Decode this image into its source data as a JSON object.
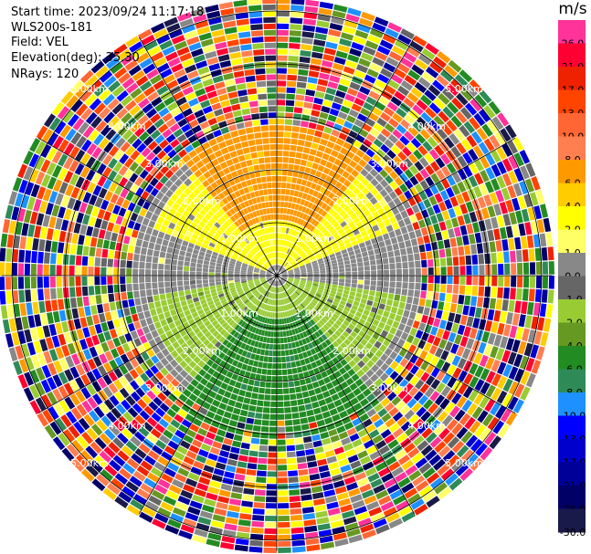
{
  "header": {
    "start_time": "Start time: 2023/09/24 11:17:18",
    "instrument": "WLS200s-181",
    "field": "Field: VEL",
    "elevation": "Elevation(deg): 35.30",
    "nrays": "NRays: 120"
  },
  "colorbar": {
    "unit": "m/s",
    "levels": [
      {
        "label": "26.0",
        "color": "#ff3399"
      },
      {
        "label": "21.0",
        "color": "#ff0033"
      },
      {
        "label": "17.0",
        "color": "#ee2200"
      },
      {
        "label": "13.0",
        "color": "#ff4400"
      },
      {
        "label": "10.0",
        "color": "#ff6633"
      },
      {
        "label": "8.0",
        "color": "#ff7f50"
      },
      {
        "label": "6.0",
        "color": "#ff9900"
      },
      {
        "label": "4.0",
        "color": "#ffcc00"
      },
      {
        "label": "2.0",
        "color": "#ffff00"
      },
      {
        "label": "1.0",
        "color": "#ffff66"
      },
      {
        "label": "0.0",
        "color": "#888888"
      },
      {
        "label": "-1.0",
        "color": "#666666"
      },
      {
        "label": "-2.0",
        "color": "#99cc33"
      },
      {
        "label": "-4.0",
        "color": "#669922"
      },
      {
        "label": "-6.0",
        "color": "#228b22"
      },
      {
        "label": "-8.0",
        "color": "#2e8b57"
      },
      {
        "label": "-10.0",
        "color": "#1e90ff"
      },
      {
        "label": "-13.0",
        "color": "#0000ff"
      },
      {
        "label": "-17.0",
        "color": "#0000cc"
      },
      {
        "label": "-21.0",
        "color": "#000099"
      },
      {
        "label": "-26.0",
        "color": "#000066"
      },
      {
        "label": "-30.0",
        "color": "#1a1a4a"
      }
    ]
  },
  "chart_data": {
    "type": "heatmap",
    "projection": "polar-ppi",
    "field": "VEL",
    "units": "m/s",
    "nrays": 120,
    "azimuth_spokes_deg": [
      0,
      30,
      60,
      90,
      120,
      150,
      180,
      210,
      240,
      270,
      300,
      330
    ],
    "range_rings_km": [
      1.0,
      2.0,
      3.0,
      4.0,
      5.0
    ],
    "ring_label": "{r}km",
    "max_range_km": 5.2,
    "velocity_sectors": [
      {
        "azimuth_range_deg": [
          290,
          70
        ],
        "range_km": [
          0.2,
          2.5
        ],
        "value_ms": 2.0,
        "description": "yellow band north"
      },
      {
        "azimuth_range_deg": [
          320,
          40
        ],
        "range_km": [
          1.0,
          2.8
        ],
        "value_ms": 6.0,
        "description": "orange core north"
      },
      {
        "azimuth_range_deg": [
          80,
          100
        ],
        "range_km": [
          0.3,
          2.2
        ],
        "value_ms": 0.0,
        "description": "grey zero line east"
      },
      {
        "azimuth_range_deg": [
          260,
          280
        ],
        "range_km": [
          0.3,
          2.2
        ],
        "value_ms": 0.0,
        "description": "grey zero line west"
      },
      {
        "azimuth_range_deg": [
          100,
          260
        ],
        "range_km": [
          0.2,
          2.5
        ],
        "value_ms": -2.0,
        "description": "light green south"
      },
      {
        "azimuth_range_deg": [
          140,
          220
        ],
        "range_km": [
          0.8,
          3.5
        ],
        "value_ms": -6.0,
        "description": "dark green core south"
      }
    ],
    "noise_beyond_km": 3.0
  }
}
